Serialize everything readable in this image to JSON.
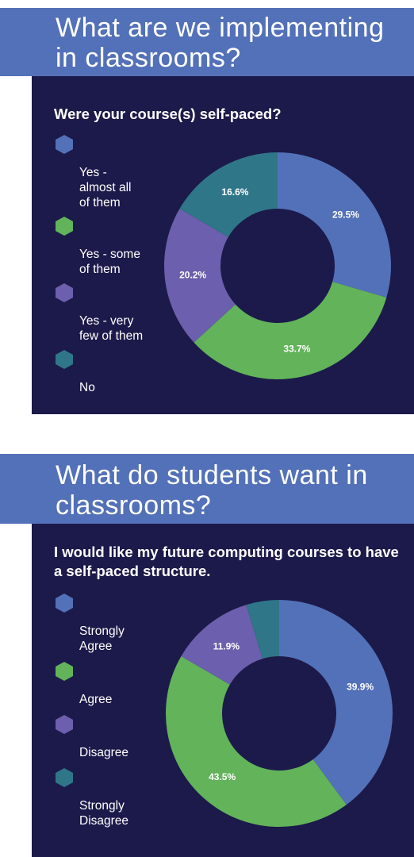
{
  "sections": [
    {
      "banner_title": "What are we implementing\nin classrooms?",
      "question": "Were your course(s) self-paced?",
      "legend": [
        {
          "label": "Yes -\nalmost all\nof them",
          "color": "#5371b8"
        },
        {
          "label": "Yes - some\nof them",
          "color": "#62b35a"
        },
        {
          "label": "Yes - very\nfew of them",
          "color": "#6c5fad"
        },
        {
          "label": "No",
          "color": "#2f7688"
        }
      ],
      "labels": [
        "29.5%",
        "33.7%",
        "20.2%",
        "16.6%"
      ]
    },
    {
      "banner_title": "What do students want in\nclassrooms?",
      "question": "I would like my future computing courses to have a self-paced structure.",
      "legend": [
        {
          "label": "Strongly\nAgree",
          "color": "#5371b8"
        },
        {
          "label": "Agree",
          "color": "#62b35a"
        },
        {
          "label": "Disagree",
          "color": "#6c5fad"
        },
        {
          "label": "Strongly\nDisagree",
          "color": "#2f7688"
        }
      ],
      "labels": [
        "39.9%",
        "43.5%",
        "11.9%",
        ""
      ]
    }
  ],
  "chart_data": [
    {
      "type": "pie",
      "title": "Were your course(s) self-paced?",
      "categories": [
        "Yes - almost all of them",
        "Yes - some of them",
        "Yes - very few of them",
        "No"
      ],
      "values": [
        29.5,
        33.7,
        20.2,
        16.6
      ],
      "colors": [
        "#5371b8",
        "#62b35a",
        "#6c5fad",
        "#2f7688"
      ],
      "legend": "left"
    },
    {
      "type": "pie",
      "title": "I would like my future computing courses to have a self-paced structure.",
      "categories": [
        "Strongly Agree",
        "Agree",
        "Disagree",
        "Strongly Disagree"
      ],
      "values": [
        39.9,
        43.5,
        11.9,
        4.7
      ],
      "colors": [
        "#5371b8",
        "#62b35a",
        "#6c5fad",
        "#2f7688"
      ],
      "legend": "left"
    }
  ]
}
